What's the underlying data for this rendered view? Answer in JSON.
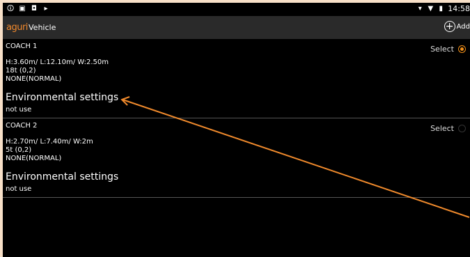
{
  "status_bar": {
    "left_icons": [
      "notification-icon",
      "image-icon",
      "lock-icon",
      "arrow-icon"
    ],
    "right_icons": [
      "location-icon",
      "wifi-icon",
      "battery-icon"
    ],
    "time": "14:58"
  },
  "app_bar": {
    "logo": "aguri",
    "title": "Vehicle",
    "add_label": "Add"
  },
  "vehicles": [
    {
      "name": "COACH 1",
      "dimensions": "H:3.60m/ L:12.10m/ W:2.50m",
      "weight": "18t (0,2)",
      "mode": "NONE(NORMAL)",
      "env_label": "Environmental settings",
      "env_value": "not use",
      "select_label": "Select",
      "selected": true
    },
    {
      "name": "COACH 2",
      "dimensions": "H:2.70m/ L:7.40m/ W:2m",
      "weight": "5t (0,2)",
      "mode": "NONE(NORMAL)",
      "env_label": "Environmental settings",
      "env_value": "not use",
      "select_label": "Select",
      "selected": false
    }
  ],
  "colors": {
    "accent": "#f39019",
    "annotation_arrow": "#f08a2c",
    "frame": "#f8e0c8",
    "appbar": "#2a2a2a"
  }
}
